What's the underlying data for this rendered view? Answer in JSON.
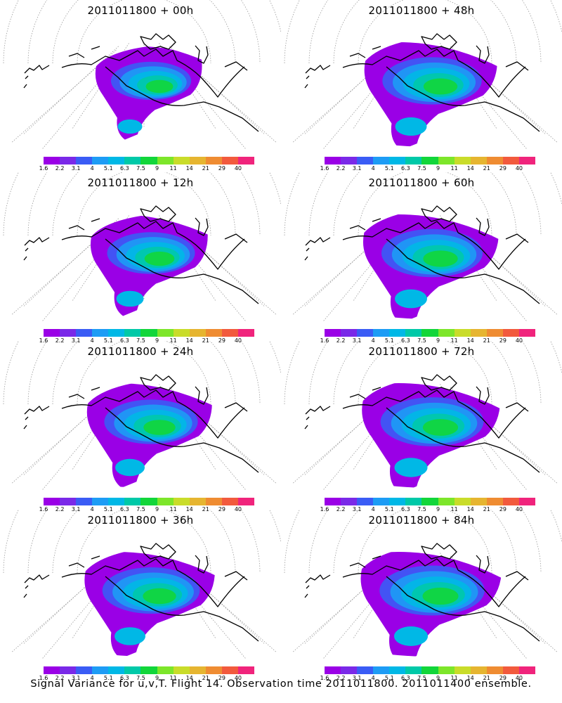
{
  "panels": [
    {
      "title": "2011011800 + 00h",
      "spread": 0.35
    },
    {
      "title": "2011011800 + 12h",
      "spread": 0.55
    },
    {
      "title": "2011011800 + 24h",
      "spread": 0.7
    },
    {
      "title": "2011011800 + 36h",
      "spread": 0.8
    },
    {
      "title": "2011011800 + 48h",
      "spread": 0.85
    },
    {
      "title": "2011011800 + 60h",
      "spread": 0.9
    },
    {
      "title": "2011011800 + 72h",
      "spread": 0.95
    },
    {
      "title": "2011011800 + 84h",
      "spread": 1.0
    }
  ],
  "colorbar": {
    "colors": [
      "#9a00e6",
      "#7a29e8",
      "#3a5cf5",
      "#1d9cf5",
      "#00b8e6",
      "#00c9a8",
      "#12d63a",
      "#7de62a",
      "#c9dc2a",
      "#e6b530",
      "#ef8c32",
      "#f25a3d",
      "#f0247c"
    ],
    "labels": [
      "1.6",
      "2.2",
      "3.1",
      "4",
      "5.1",
      "6.3",
      "7.5",
      "9",
      "11",
      "14",
      "21",
      "29",
      "40"
    ]
  },
  "footer": "Signal Variance for u,v,T. Flight 14. Observation time 2011011800. 2011011400 ensemble."
}
